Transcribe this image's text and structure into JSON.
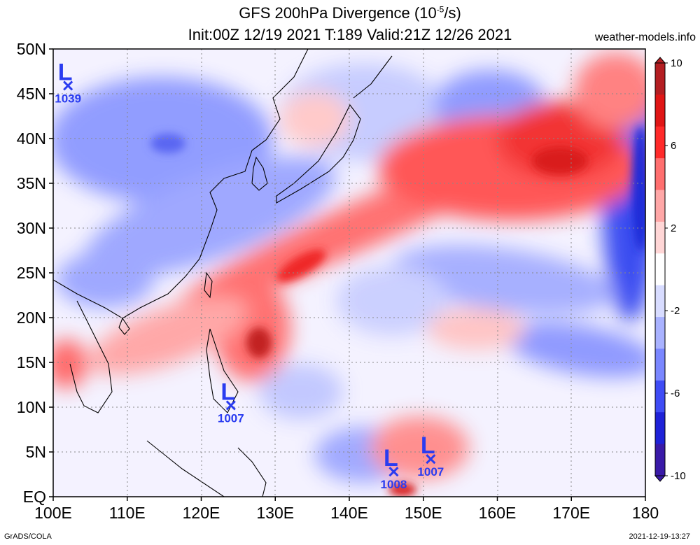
{
  "title_main": "GFS 200hPa Divergence (10",
  "title_exp": "-5",
  "title_unit": "/s)",
  "title_line2": "Init:00Z 12/19 2021  T:189  Valid:21Z 12/26 2021",
  "site": "weather-models.info",
  "footer_left": "GrADS/COLA",
  "footer_right": "2021-12-19-13:27",
  "lat_labels": [
    "50N",
    "45N",
    "40N",
    "35N",
    "30N",
    "25N",
    "20N",
    "15N",
    "10N",
    "5N",
    "EQ"
  ],
  "lon_labels": [
    "100E",
    "110E",
    "120E",
    "130E",
    "140E",
    "150E",
    "160E",
    "170E",
    "180"
  ],
  "colorbar": {
    "labels": [
      "10",
      "6",
      "2",
      "-2",
      "-6",
      "-10"
    ],
    "colors": [
      "#b41e22",
      "#e01616",
      "#ff2a2a",
      "#ff6f6f",
      "#ffa7a7",
      "#ffd6d6",
      "#ffffff",
      "#d8dcff",
      "#a9b2ff",
      "#7a87ff",
      "#3f4cf5",
      "#1f22d8",
      "#3a1aa8"
    ]
  },
  "lows": [
    {
      "label": "L",
      "value": "1039",
      "lon": 102,
      "lat": 45.9
    },
    {
      "label": "L",
      "value": "1007",
      "lon": 124,
      "lat": 10.2
    },
    {
      "label": "L",
      "value": "1008",
      "lon": 146,
      "lat": 2.8
    },
    {
      "label": "L",
      "value": "1007",
      "lon": 151,
      "lat": 4.2
    }
  ],
  "extent": {
    "lon": [
      100,
      180
    ],
    "lat": [
      0,
      50
    ]
  }
}
